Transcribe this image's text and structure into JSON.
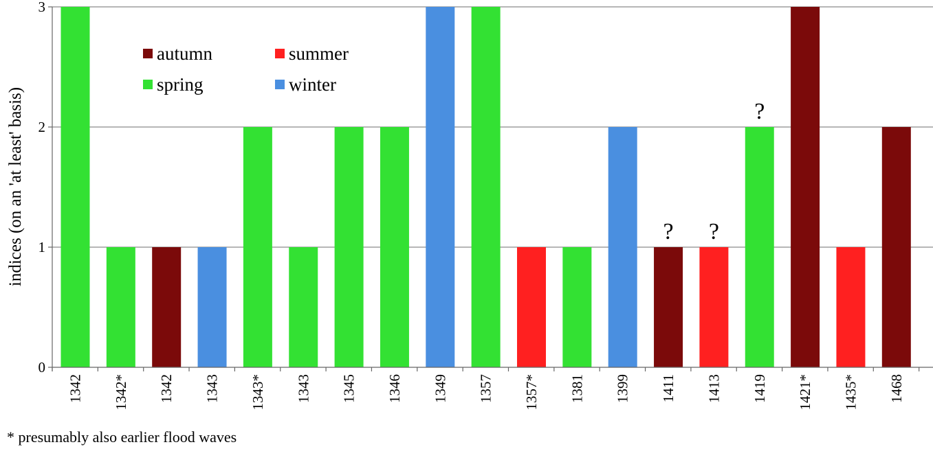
{
  "chart_data": {
    "type": "bar",
    "ylabel": "indices (on an 'at least' basis)",
    "ylim": [
      0,
      3
    ],
    "yticks": [
      0,
      1,
      2,
      3
    ],
    "grid": true,
    "legend_position": "top-left",
    "legend": [
      {
        "key": "autumn",
        "label": "autumn",
        "color": "#7b0a0a"
      },
      {
        "key": "summer",
        "label": "summer",
        "color": "#ff2020"
      },
      {
        "key": "spring",
        "label": "spring",
        "color": "#33e133"
      },
      {
        "key": "winter",
        "label": "winter",
        "color": "#4a8fe0"
      }
    ],
    "categories": [
      "1342",
      "1342*",
      "1342",
      "1343",
      "1343*",
      "1343",
      "1345",
      "1346",
      "1349",
      "1357",
      "1357*",
      "1381",
      "1399",
      "1411",
      "1413",
      "1419",
      "1421*",
      "1435*",
      "1468"
    ],
    "values": [
      3,
      1,
      1,
      1,
      2,
      1,
      2,
      2,
      3,
      3,
      1,
      1,
      2,
      1,
      1,
      2,
      3,
      1,
      2
    ],
    "seasons": [
      "spring",
      "spring",
      "autumn",
      "winter",
      "spring",
      "spring",
      "spring",
      "spring",
      "winter",
      "spring",
      "summer",
      "spring",
      "winter",
      "autumn",
      "summer",
      "spring",
      "autumn",
      "summer",
      "autumn"
    ],
    "annotations": [
      {
        "index": 13,
        "text": "?"
      },
      {
        "index": 14,
        "text": "?"
      },
      {
        "index": 15,
        "text": "?"
      }
    ]
  },
  "footnote": "* presumably also earlier  flood waves"
}
